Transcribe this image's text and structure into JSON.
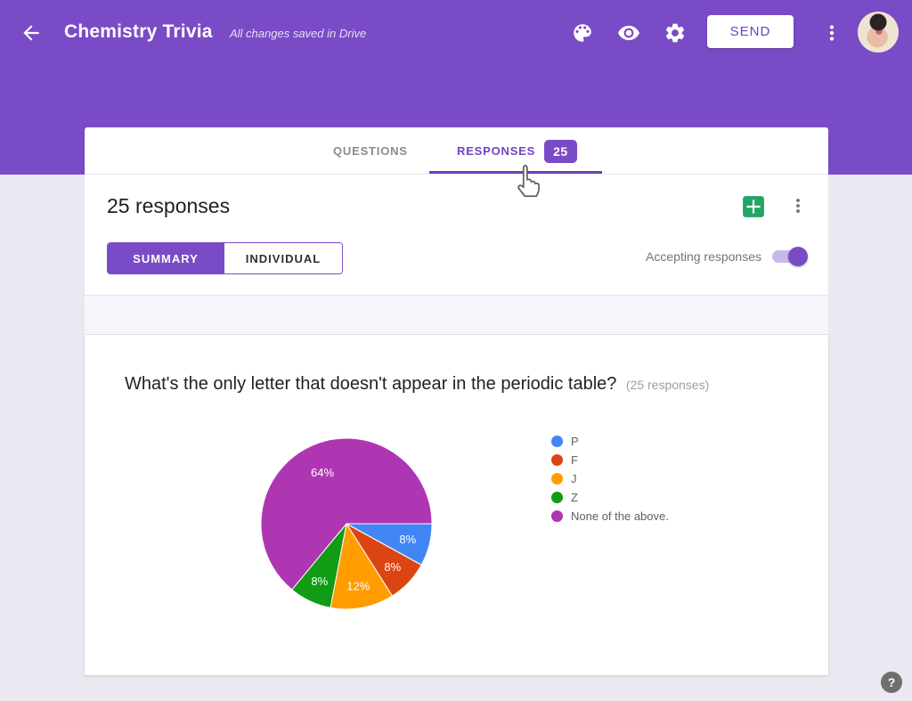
{
  "header": {
    "title": "Chemistry Trivia",
    "autosave_status": "All changes saved in Drive",
    "send_label": "SEND"
  },
  "tabs": {
    "questions_label": "QUESTIONS",
    "responses_label": "RESPONSES",
    "responses_count_badge": "25",
    "active_tab": "RESPONSES"
  },
  "responses_panel": {
    "heading": "25 responses",
    "summary_label": "SUMMARY",
    "individual_label": "INDIVIDUAL",
    "accepting_label": "Accepting responses",
    "accepting_on": true
  },
  "question": {
    "title": "What's the only letter that doesn't appear in the periodic table?",
    "response_count_note": "(25 responses)"
  },
  "chart_data": {
    "type": "pie",
    "title": "What's the only letter that doesn't appear in the periodic table?",
    "total_responses": 25,
    "categories": [
      "P",
      "F",
      "J",
      "Z",
      "None of the above."
    ],
    "values_percent": [
      8,
      8,
      12,
      8,
      64
    ],
    "slice_labels": [
      "8%",
      "8%",
      "12%",
      "8%",
      "64%"
    ],
    "colors": [
      "#4285F4",
      "#DB4512",
      "#FF9D00",
      "#109C14",
      "#AF36B2"
    ],
    "legend_position": "right",
    "start_angle_deg": 0,
    "direction": "clockwise"
  },
  "help": {
    "label": "?"
  },
  "icons": {
    "back": "arrow-left",
    "theme": "palette",
    "preview": "eye",
    "settings": "gear",
    "header_menu": "kebab-menu",
    "spreadsheet": "sheets-create",
    "panel_menu": "kebab-menu",
    "help": "question-mark",
    "cursor": "hand-pointer"
  },
  "colors": {
    "header_purple": "#7A4BC6",
    "accent_purple": "#7342BE",
    "page_background": "#EBE8F1",
    "sheets_green": "#23A566",
    "help_gray": "#6F6F6F"
  }
}
